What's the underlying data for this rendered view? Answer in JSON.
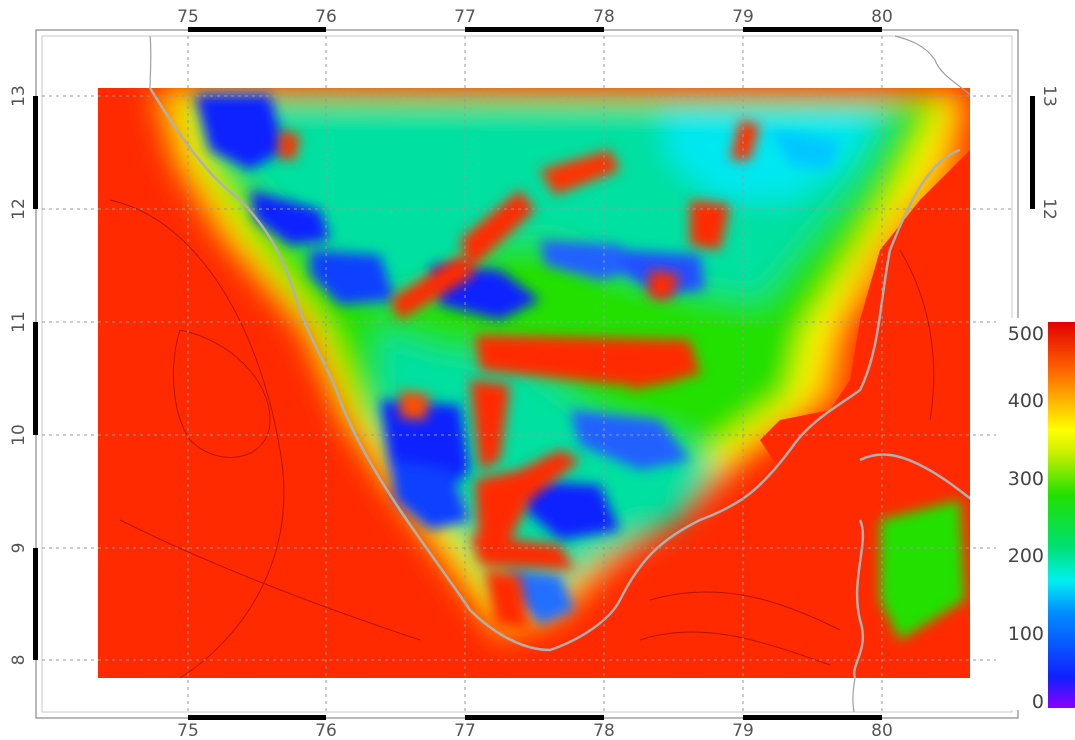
{
  "map": {
    "lon_ticks": [
      "75",
      "76",
      "77",
      "78",
      "79",
      "80"
    ],
    "lat_ticks": [
      "8",
      "9",
      "10",
      "11",
      "12",
      "13"
    ],
    "lat_ticks_right": [
      "12",
      "13"
    ],
    "lon_range": [
      74.0,
      80.8
    ],
    "lat_range": [
      7.5,
      13.5
    ],
    "field_extent": {
      "lon": [
        74.45,
        80.65
      ],
      "lat": [
        7.82,
        13.05
      ]
    },
    "grid_lines": "dotted"
  },
  "colorbar": {
    "ticks": [
      "0",
      "100",
      "200",
      "300",
      "400",
      "500"
    ],
    "range": [
      0,
      500
    ],
    "colors": [
      "#8a00ff",
      "#1020ff",
      "#0090ff",
      "#00f0f0",
      "#00e060",
      "#20e000",
      "#c8f000",
      "#ffff00",
      "#ffb000",
      "#ff6000",
      "#ff2a00",
      "#e00000"
    ]
  },
  "colors": {
    "land_high": "#ff2a00",
    "ocean_outline": "#a8a8a8",
    "frame_dark": "#000000"
  }
}
